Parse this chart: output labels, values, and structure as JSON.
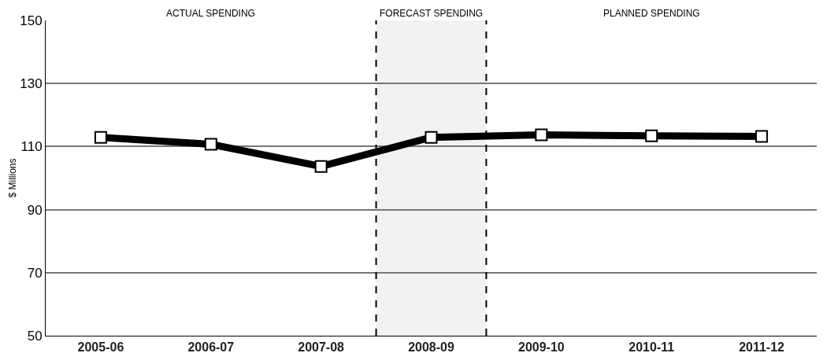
{
  "chart_data": {
    "type": "line",
    "ylabel": "$ Millions",
    "categories": [
      "2005-06",
      "2006-07",
      "2007-08",
      "2008-09",
      "2009-10",
      "2010-11",
      "2011-12"
    ],
    "series": [
      {
        "color": "#000000",
        "values": [
          112.9,
          110.7,
          103.7,
          112.9,
          113.7,
          113.4,
          113.2
        ]
      }
    ],
    "ylim": [
      50,
      150
    ],
    "yticks": [
      50,
      70,
      90,
      110,
      130,
      150
    ],
    "grid": "y",
    "marker": "square",
    "line_style": "solid",
    "bands": [
      {
        "axis": "x",
        "from": "2008-09",
        "to": "2008-09",
        "label": "FORECAST SPENDING",
        "color": "#f2f2f2"
      }
    ],
    "annotations": [
      "ACTUAL SPENDING",
      "PLANNED SPENDING"
    ]
  }
}
